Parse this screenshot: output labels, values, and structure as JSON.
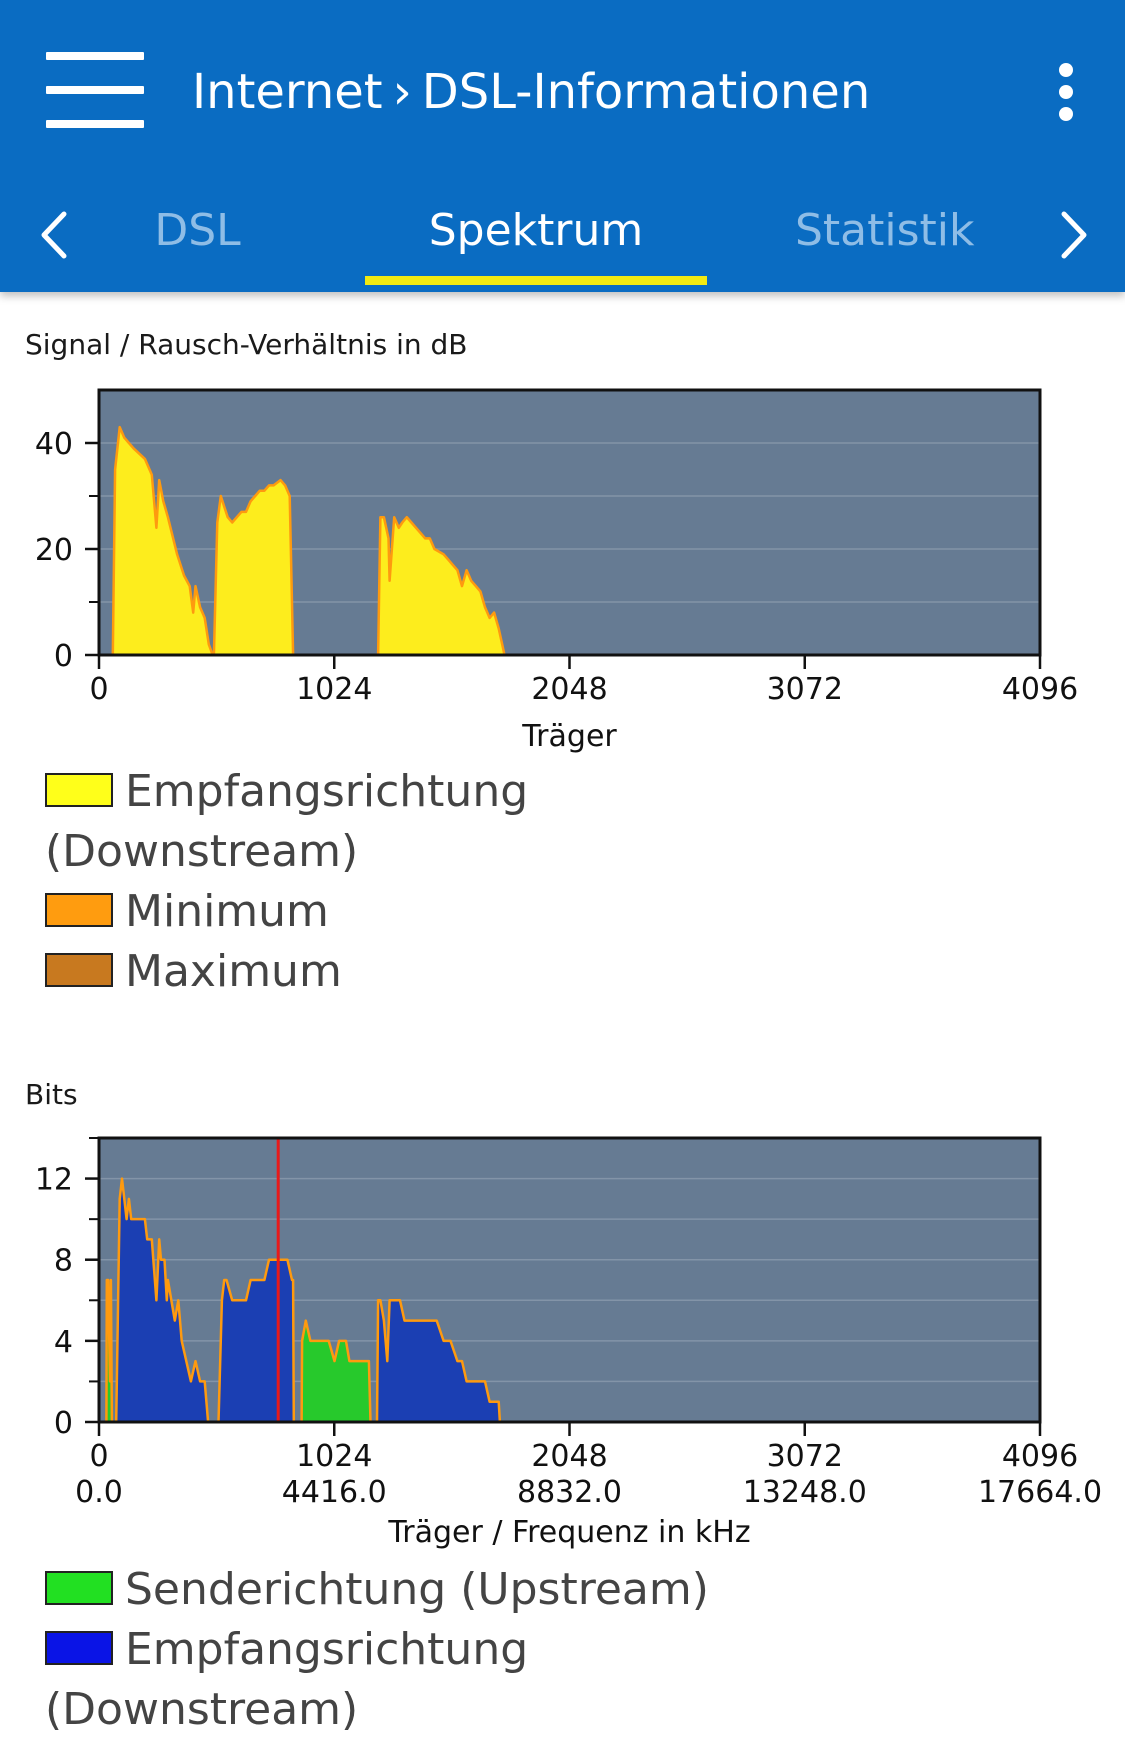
{
  "header": {
    "breadcrumb_root": "Internet",
    "breadcrumb_separator": "›",
    "breadcrumb_current": "DSL-Informationen",
    "menu_icon": "hamburger-menu-icon",
    "more_icon": "more-vertical-icon"
  },
  "tabs": [
    {
      "label": "DSL",
      "active": false
    },
    {
      "label": "Spektrum",
      "active": true
    },
    {
      "label": "Statistik",
      "active": false
    }
  ],
  "colors": {
    "appbar": "#0a6cc2",
    "tab_indicator": "#f2ea12",
    "plot_bg": "#667b93",
    "downstream_snr": "#fded1d",
    "minimum": "#fe9a0f",
    "maximum": "#c87922",
    "upstream": "#27c92c",
    "downstream_bits": "#1b3fb3",
    "marker": "#e8191a"
  },
  "snr_chart": {
    "title": "Signal / Rausch-Verhältnis in dB",
    "xlabel": "Träger",
    "legend": [
      {
        "line1": "Empfangsrichtung",
        "line2": "(Downstream)",
        "color": "#ffff1a"
      },
      {
        "line1": "Minimum",
        "line2": "",
        "color": "#ff9c0f"
      },
      {
        "line1": "Maximum",
        "line2": "",
        "color": "#c8791f"
      }
    ]
  },
  "bits_chart": {
    "title": "Bits",
    "xlabel": "Träger / Frequenz in kHz",
    "legend": [
      {
        "line1": "Senderichtung (Upstream)",
        "line2": "",
        "color": "#22e022"
      },
      {
        "line1": "Empfangsrichtung",
        "line2": "(Downstream)",
        "color": "#0a14e6"
      }
    ]
  },
  "chart_data": [
    {
      "type": "area",
      "title": "Signal / Rausch-Verhältnis in dB",
      "xlabel": "Träger",
      "ylabel": "",
      "xlim": [
        0,
        4096
      ],
      "ylim": [
        0,
        50
      ],
      "xticks": [
        0,
        1024,
        2048,
        3072,
        4096
      ],
      "yticks": [
        0,
        20,
        40
      ],
      "grid": true,
      "series": [
        {
          "name": "Empfangsrichtung (Downstream)",
          "segments": [
            {
              "x": [
                60,
                70,
                90,
                110,
                150,
                200,
                230,
                250,
                262,
                280,
                300,
                340,
                370,
                395,
                410,
                420,
                440,
                460,
                478,
                495,
                498
              ],
              "y": [
                0,
                35,
                43,
                41,
                39,
                37,
                34,
                24,
                33,
                29,
                26,
                19,
                15,
                13,
                8,
                13,
                9,
                7,
                2,
                0,
                0
              ]
            },
            {
              "x": [
                500,
                515,
                530,
                545,
                560,
                580,
                600,
                620,
                640,
                660,
                680,
                700,
                720,
                740,
                760,
                790,
                810,
                830,
                845
              ],
              "y": [
                0,
                25,
                30,
                28,
                26,
                25,
                26,
                27,
                27,
                29,
                30,
                31,
                31,
                32,
                32,
                33,
                32,
                30,
                0
              ]
            },
            {
              "x": [
                1215,
                1225,
                1240,
                1260,
                1265,
                1285,
                1305,
                1320,
                1340,
                1360,
                1380,
                1400,
                1420,
                1440,
                1460,
                1500,
                1520,
                1540,
                1560,
                1580,
                1600,
                1620,
                1640,
                1660,
                1680,
                1700,
                1720,
                1740,
                1755,
                1765
              ],
              "y": [
                0,
                26,
                26,
                22,
                14,
                26,
                24,
                25,
                26,
                25,
                24,
                23,
                22,
                22,
                20,
                19,
                18,
                17,
                16,
                13,
                16,
                14,
                13,
                12,
                9,
                7,
                8,
                5,
                2,
                0
              ]
            }
          ]
        },
        {
          "name": "Minimum",
          "segments": []
        },
        {
          "name": "Maximum",
          "segments": []
        }
      ]
    },
    {
      "type": "area",
      "title": "Bits",
      "xlabel": "Träger / Frequenz in kHz",
      "ylabel": "",
      "xlim": [
        0,
        4096
      ],
      "ylim": [
        0,
        14
      ],
      "xticks": [
        0,
        1024,
        2048,
        3072,
        4096
      ],
      "xticklabels_freq": [
        "0.0",
        "4416.0",
        "8832.0",
        "13248.0",
        "17664.0"
      ],
      "yticks": [
        0,
        4,
        8,
        12
      ],
      "grid": true,
      "marker_x": 780,
      "series": [
        {
          "name": "Senderichtung (Upstream)",
          "segments": [
            {
              "x": [
                32,
                34,
                40,
                48,
                52,
                56,
                58
              ],
              "y": [
                0,
                7,
                7,
                2,
                7,
                0,
                0
              ]
            },
            {
              "x": [
                882,
                884,
                900,
                920,
                960,
                1000,
                1025,
                1045,
                1075,
                1090,
                1100,
                1140,
                1175,
                1182
              ],
              "y": [
                0,
                4,
                5,
                4,
                4,
                4,
                3,
                4,
                4,
                3,
                3,
                3,
                3,
                0
              ]
            }
          ]
        },
        {
          "name": "Empfangsrichtung (Downstream)",
          "segments": [
            {
              "x": [
                75,
                90,
                100,
                120,
                130,
                140,
                200,
                210,
                230,
                250,
                262,
                270,
                285,
                295,
                300,
                330,
                345,
                360,
                380,
                400,
                420,
                440,
                460,
                475,
                490
              ],
              "y": [
                0,
                11,
                12,
                10,
                11,
                10,
                10,
                9,
                9,
                6,
                9,
                8,
                8,
                6,
                7,
                5,
                6,
                4,
                3,
                2,
                3,
                2,
                2,
                0,
                0
              ]
            },
            {
              "x": [
                520,
                535,
                545,
                555,
                580,
                600,
                620,
                640,
                660,
                680,
                700,
                720,
                740,
                760,
                780,
                800,
                820,
                840,
                845,
                848
              ],
              "y": [
                0,
                6,
                7,
                7,
                6,
                6,
                6,
                6,
                7,
                7,
                7,
                7,
                8,
                8,
                8,
                8,
                8,
                7,
                7,
                0
              ]
            },
            {
              "x": [
                1210,
                1215,
                1225,
                1240,
                1255,
                1265,
                1275,
                1290,
                1310,
                1330,
                1360,
                1400,
                1440,
                1470,
                1500,
                1530,
                1560,
                1580,
                1600,
                1620,
                1650,
                1680,
                1700,
                1720,
                1740,
                1745
              ],
              "y": [
                0,
                6,
                6,
                5,
                3,
                6,
                6,
                6,
                6,
                5,
                5,
                5,
                5,
                5,
                4,
                4,
                3,
                3,
                2,
                2,
                2,
                2,
                1,
                1,
                1,
                0
              ]
            }
          ]
        }
      ]
    }
  ]
}
